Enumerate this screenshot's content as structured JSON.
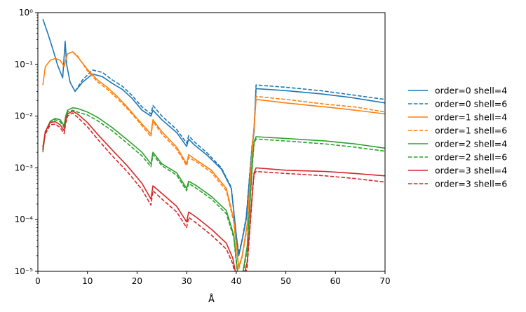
{
  "chart_data": {
    "type": "line",
    "title": "",
    "xlabel": "Å",
    "ylabel": "",
    "xlim": [
      0,
      70
    ],
    "ylim": [
      1e-05,
      1
    ],
    "yscale": "log",
    "grid": false,
    "legend_position": "right, outside plot",
    "x_ticks": [
      "0",
      "10",
      "20",
      "30",
      "40",
      "50",
      "60",
      "70"
    ],
    "y_ticks": [
      "10⁻⁵",
      "10⁻⁴",
      "10⁻³",
      "10⁻²",
      "10⁻¹",
      "10⁰"
    ],
    "series": [
      {
        "name": "order=0 shell=4",
        "color": "#1f77b4",
        "linestyle": "solid",
        "x": [
          1.0,
          2.0,
          3.0,
          4.0,
          5.0,
          5.5,
          5.8,
          6.5,
          7.5,
          9.0,
          11.0,
          13.0,
          15.0,
          17.0,
          19.0,
          21.0,
          22.8,
          23.2,
          25.0,
          28.0,
          30.0,
          30.4,
          31.5,
          34.0,
          37.0,
          39.0,
          40.0,
          40.5,
          41.2,
          42.0,
          43.2,
          43.6,
          44.0,
          50.0,
          57.0,
          63.0,
          70.0
        ],
        "y": [
          0.75,
          0.4,
          0.2,
          0.095,
          0.055,
          0.28,
          0.1,
          0.045,
          0.03,
          0.045,
          0.065,
          0.058,
          0.043,
          0.033,
          0.022,
          0.013,
          0.01,
          0.013,
          0.0085,
          0.0048,
          0.0026,
          0.0036,
          0.0028,
          0.0018,
          0.00095,
          0.0004,
          5e-05,
          2e-05,
          4e-05,
          0.0001,
          0.0025,
          0.005,
          0.034,
          0.031,
          0.027,
          0.023,
          0.018
        ]
      },
      {
        "name": "order=0 shell=6",
        "color": "#1f77b4",
        "linestyle": "dashed",
        "x": [
          7.5,
          9.0,
          11.0,
          13.0,
          15.0,
          17.0,
          19.0,
          21.0,
          22.8,
          23.2,
          25.0,
          28.0,
          30.0,
          30.4,
          31.5,
          34.0,
          37.0,
          39.0,
          40.0,
          40.5,
          41.2,
          42.0,
          43.2,
          43.6,
          44.0,
          50.0,
          57.0,
          63.0,
          70.0
        ],
        "y": [
          0.03,
          0.05,
          0.078,
          0.07,
          0.05,
          0.038,
          0.025,
          0.015,
          0.011,
          0.016,
          0.01,
          0.0055,
          0.003,
          0.0042,
          0.0032,
          0.002,
          0.001,
          0.00042,
          5e-05,
          2.2e-05,
          4.2e-05,
          0.00011,
          0.0028,
          0.006,
          0.04,
          0.036,
          0.031,
          0.026,
          0.021
        ]
      },
      {
        "name": "order=1 shell=4",
        "color": "#ff7f0e",
        "linestyle": "solid",
        "x": [
          1.0,
          1.5,
          2.5,
          3.5,
          4.5,
          5.3,
          5.6,
          6.0,
          7.0,
          8.0,
          10.0,
          12.0,
          14.0,
          16.0,
          18.0,
          20.0,
          22.8,
          23.2,
          25.0,
          28.0,
          30.0,
          30.4,
          32.0,
          35.0,
          38.0,
          39.5,
          40.5,
          41.2,
          42.2,
          43.3,
          43.6,
          44.0,
          50.0,
          58.0,
          64.0,
          70.0
        ],
        "y": [
          0.04,
          0.09,
          0.12,
          0.13,
          0.12,
          0.09,
          0.12,
          0.16,
          0.175,
          0.14,
          0.08,
          0.05,
          0.036,
          0.024,
          0.015,
          0.009,
          0.0045,
          0.0085,
          0.005,
          0.0025,
          0.0012,
          0.0018,
          0.0014,
          0.0009,
          0.0004,
          0.0001,
          1.2e-05,
          2e-05,
          8e-05,
          0.003,
          0.006,
          0.021,
          0.018,
          0.015,
          0.013,
          0.011
        ]
      },
      {
        "name": "order=1 shell=6",
        "color": "#ff7f0e",
        "linestyle": "dashed",
        "x": [
          6.0,
          7.0,
          8.0,
          10.0,
          12.0,
          14.0,
          16.0,
          18.0,
          20.0,
          22.8,
          23.2,
          25.0,
          28.0,
          30.0,
          30.4,
          32.0,
          35.0,
          38.0,
          39.5,
          40.5,
          41.2,
          42.2,
          43.3,
          43.6,
          44.0,
          50.0,
          58.0,
          64.0,
          70.0
        ],
        "y": [
          0.16,
          0.175,
          0.145,
          0.075,
          0.046,
          0.033,
          0.022,
          0.014,
          0.0085,
          0.004,
          0.008,
          0.0045,
          0.0023,
          0.0011,
          0.0016,
          0.0013,
          0.00082,
          0.00036,
          9e-05,
          1.1e-05,
          1.9e-05,
          7e-05,
          0.0028,
          0.0065,
          0.024,
          0.021,
          0.017,
          0.015,
          0.012
        ]
      },
      {
        "name": "order=2 shell=4",
        "color": "#2ca02c",
        "linestyle": "solid",
        "x": [
          1.0,
          1.5,
          2.5,
          3.5,
          4.5,
          5.3,
          5.6,
          6.0,
          7.0,
          8.0,
          10.0,
          12.0,
          15.0,
          18.0,
          21.0,
          22.8,
          23.2,
          25.0,
          28.0,
          30.0,
          30.4,
          32.0,
          35.0,
          38.0,
          39.5,
          40.3,
          41.2,
          42.2,
          43.3,
          43.6,
          44.0,
          50.0,
          58.0,
          64.0,
          70.0
        ],
        "y": [
          0.002,
          0.005,
          0.008,
          0.009,
          0.0085,
          0.0065,
          0.01,
          0.013,
          0.0145,
          0.014,
          0.012,
          0.0095,
          0.006,
          0.0035,
          0.002,
          0.0012,
          0.002,
          0.0012,
          0.0008,
          0.0004,
          0.00055,
          0.00045,
          0.00028,
          0.00015,
          5e-05,
          9e-06,
          8e-06,
          3e-05,
          0.0015,
          0.0032,
          0.004,
          0.0037,
          0.0033,
          0.0029,
          0.0024
        ]
      },
      {
        "name": "order=2 shell=6",
        "color": "#2ca02c",
        "linestyle": "dashed",
        "x": [
          1.0,
          1.5,
          2.5,
          3.5,
          4.5,
          5.3,
          5.6,
          6.0,
          7.0,
          8.0,
          10.0,
          12.0,
          15.0,
          18.0,
          21.0,
          22.8,
          23.2,
          25.0,
          28.0,
          30.0,
          30.4,
          32.0,
          35.0,
          38.0,
          39.5,
          40.3,
          41.2,
          42.2,
          43.3,
          43.6,
          44.0,
          50.0,
          58.0,
          64.0,
          70.0
        ],
        "y": [
          0.0022,
          0.0048,
          0.0075,
          0.0085,
          0.0078,
          0.006,
          0.009,
          0.012,
          0.013,
          0.012,
          0.0105,
          0.0082,
          0.0052,
          0.003,
          0.0017,
          0.00105,
          0.0018,
          0.0011,
          0.00072,
          0.00036,
          0.0005,
          0.0004,
          0.00025,
          0.00013,
          4.5e-05,
          8e-06,
          7e-06,
          2.6e-05,
          0.0013,
          0.003,
          0.0036,
          0.0033,
          0.0029,
          0.0025,
          0.0021
        ]
      },
      {
        "name": "order=3 shell=4",
        "color": "#d62728",
        "linestyle": "solid",
        "x": [
          1.0,
          1.5,
          2.5,
          3.5,
          4.5,
          5.3,
          5.6,
          6.0,
          7.0,
          8.0,
          10.0,
          12.0,
          15.0,
          18.0,
          21.0,
          22.8,
          23.2,
          25.0,
          28.0,
          30.0,
          30.4,
          32.0,
          35.0,
          38.0,
          39.3,
          40.0,
          41.2,
          42.2,
          43.3,
          43.6,
          44.0,
          50.0,
          58.0,
          64.0,
          70.0
        ],
        "y": [
          0.0025,
          0.005,
          0.0075,
          0.0078,
          0.0068,
          0.0052,
          0.008,
          0.011,
          0.0125,
          0.011,
          0.0075,
          0.0045,
          0.0022,
          0.0011,
          0.0005,
          0.00025,
          0.00045,
          0.00032,
          0.00018,
          9e-05,
          0.00014,
          0.00011,
          6.5e-05,
          3.5e-05,
          1.8e-05,
          8e-06,
          6e-06,
          1.5e-05,
          0.0004,
          0.0008,
          0.001,
          0.0009,
          0.00085,
          0.00078,
          0.0007
        ]
      },
      {
        "name": "order=3 shell=6",
        "color": "#d62728",
        "linestyle": "dashed",
        "x": [
          1.0,
          1.5,
          2.5,
          3.5,
          4.5,
          5.3,
          5.6,
          6.0,
          7.0,
          8.0,
          10.0,
          12.0,
          15.0,
          18.0,
          21.0,
          22.8,
          23.2,
          25.0,
          28.0,
          30.0,
          30.4,
          32.0,
          35.0,
          38.0,
          39.3,
          40.0,
          41.2,
          42.2,
          43.3,
          43.6,
          44.0,
          50.0,
          58.0,
          64.0,
          70.0
        ],
        "y": [
          0.0022,
          0.0045,
          0.0068,
          0.007,
          0.006,
          0.0046,
          0.0072,
          0.01,
          0.0115,
          0.0095,
          0.0062,
          0.0036,
          0.0017,
          0.00085,
          0.00038,
          0.00019,
          0.00036,
          0.00025,
          0.00014,
          7e-05,
          0.00011,
          8.5e-05,
          5e-05,
          2.7e-05,
          1.4e-05,
          6e-06,
          5e-06,
          1.2e-05,
          0.00035,
          0.00075,
          0.00085,
          0.00078,
          0.0007,
          0.00062,
          0.00053
        ]
      }
    ]
  }
}
